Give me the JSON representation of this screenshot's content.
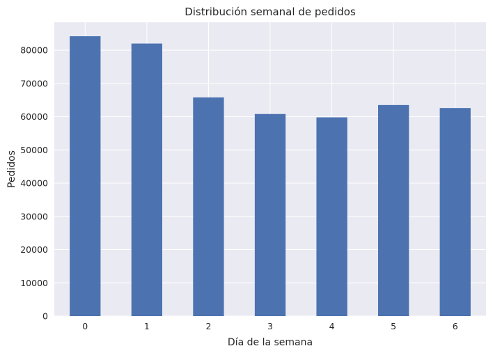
{
  "chart_data": {
    "type": "bar",
    "title": "Distribución semanal de pedidos",
    "xlabel": "Día de la semana",
    "ylabel": "Pedidos",
    "categories": [
      "0",
      "1",
      "2",
      "3",
      "4",
      "5",
      "6"
    ],
    "values": [
      84200,
      82000,
      65800,
      60800,
      59800,
      63500,
      62600
    ],
    "ylim": [
      0,
      88400
    ],
    "yticks": [
      0,
      10000,
      20000,
      30000,
      40000,
      50000,
      60000,
      70000,
      80000
    ],
    "ytick_labels": [
      "0",
      "10000",
      "20000",
      "30000",
      "40000",
      "50000",
      "60000",
      "70000",
      "80000"
    ],
    "grid": true,
    "legend": "none",
    "colors": {
      "bar": "#4c72b0",
      "plot_background": "#eaeaf2",
      "grid": "#ffffff",
      "text": "#262626"
    }
  }
}
